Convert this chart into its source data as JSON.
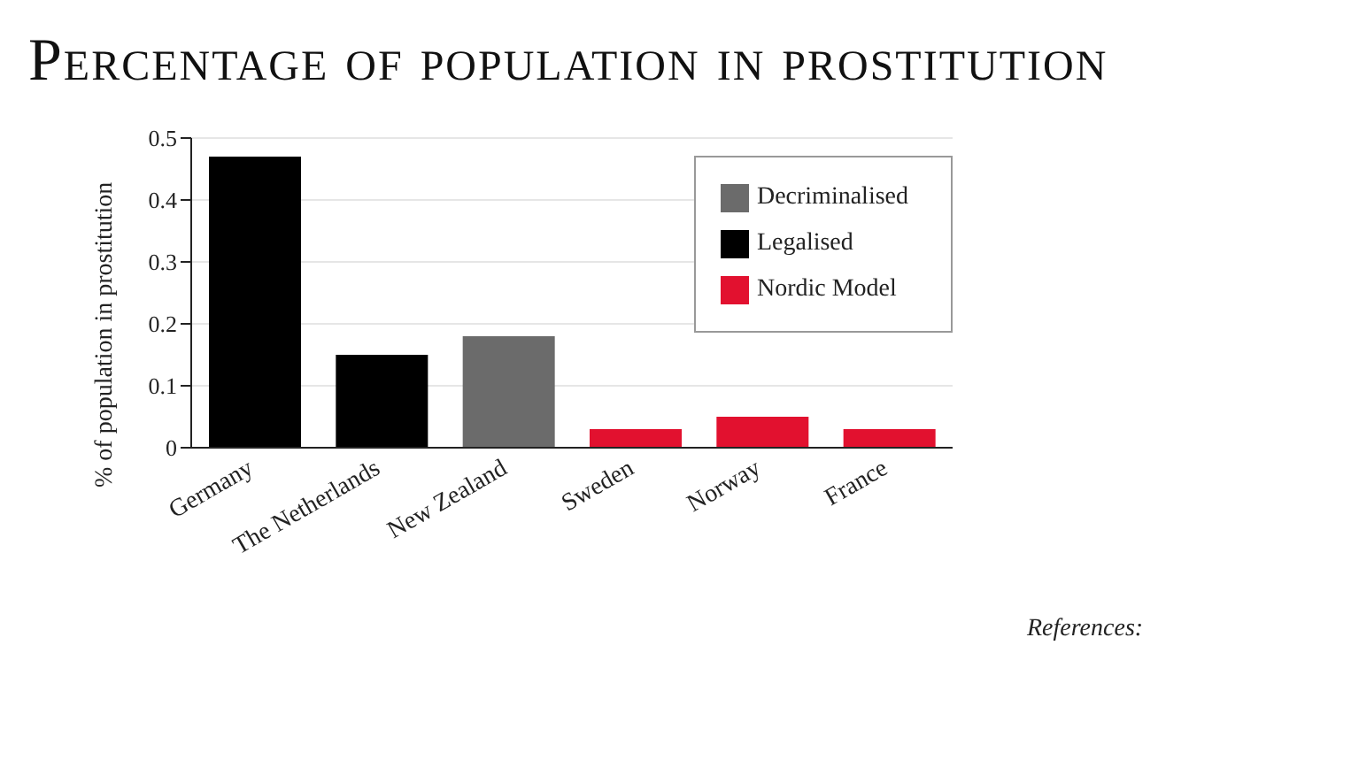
{
  "chart_data": {
    "type": "bar",
    "title": "Percentage of population in prostitution",
    "ylabel": "% of population in prostitution",
    "categories": [
      "Germany",
      "The Netherlands",
      "New Zealand",
      "Sweden",
      "Norway",
      "France"
    ],
    "stacked": true,
    "series": [
      {
        "name": "Legalised",
        "color": "#000000",
        "values": [
          0.47,
          0.15,
          null,
          null,
          null,
          null
        ]
      },
      {
        "name": "Decriminalised",
        "color": "#6b6b6b",
        "values": [
          null,
          null,
          0.18,
          null,
          null,
          null
        ]
      },
      {
        "name": "Nordic Model",
        "color": "#e2112f",
        "values": [
          null,
          null,
          null,
          0.03,
          0.05,
          0.03
        ]
      }
    ],
    "ylim": [
      0,
      0.5
    ],
    "yticks": [
      0,
      0.1,
      0.2,
      0.3,
      0.4,
      0.5
    ],
    "grid": "y",
    "legend": "top right",
    "annotations": [
      "References:"
    ]
  }
}
